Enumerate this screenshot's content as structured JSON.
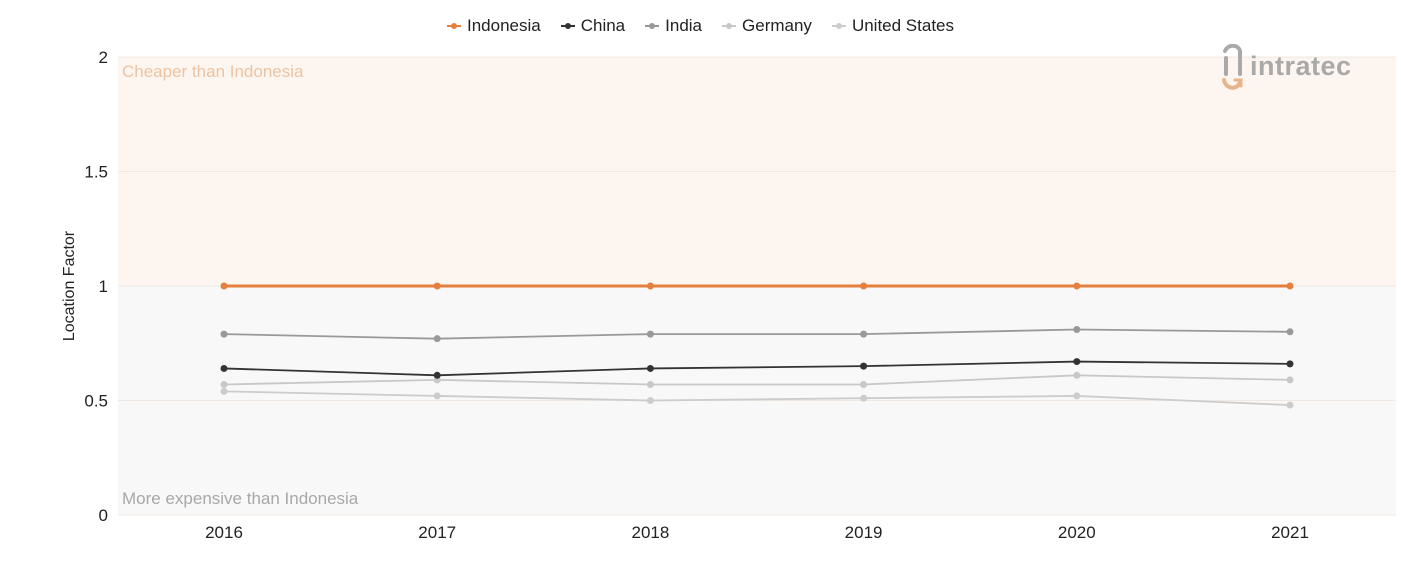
{
  "chart_data": {
    "type": "line",
    "title": "",
    "xlabel": "",
    "ylabel": "Location Factor",
    "x": [
      "2016",
      "2017",
      "2018",
      "2019",
      "2020",
      "2021"
    ],
    "ylim": [
      0,
      2
    ],
    "yticks": [
      "0",
      "0.5",
      "1",
      "1.5",
      "2"
    ],
    "legend_position": "top-center",
    "grid": true,
    "regions": [
      {
        "label": "Cheaper than Indonesia",
        "from": 1,
        "to": 2,
        "fill": "#fdf5ef",
        "text_color": "#ecc3a3"
      },
      {
        "label": "More expensive than Indonesia",
        "from": 0,
        "to": 1,
        "fill": "#f8f8f8",
        "text_color": "#a8a8a8"
      }
    ],
    "series": [
      {
        "name": "Indonesia",
        "color": "#e57f3d",
        "values": [
          1.0,
          1.0,
          1.0,
          1.0,
          1.0,
          1.0
        ]
      },
      {
        "name": "China",
        "color": "#333333",
        "values": [
          0.64,
          0.61,
          0.64,
          0.65,
          0.67,
          0.66
        ]
      },
      {
        "name": "India",
        "color": "#999999",
        "values": [
          0.79,
          0.77,
          0.79,
          0.79,
          0.81,
          0.8
        ]
      },
      {
        "name": "Germany",
        "color": "#c8c8c8",
        "values": [
          0.57,
          0.59,
          0.57,
          0.57,
          0.61,
          0.59
        ]
      },
      {
        "name": "United States",
        "color": "#cccccc",
        "values": [
          0.54,
          0.52,
          0.5,
          0.51,
          0.52,
          0.48
        ]
      }
    ]
  },
  "logo": {
    "text": "intratec",
    "color": "#a9a9a9",
    "accent": "#e8b48a"
  }
}
